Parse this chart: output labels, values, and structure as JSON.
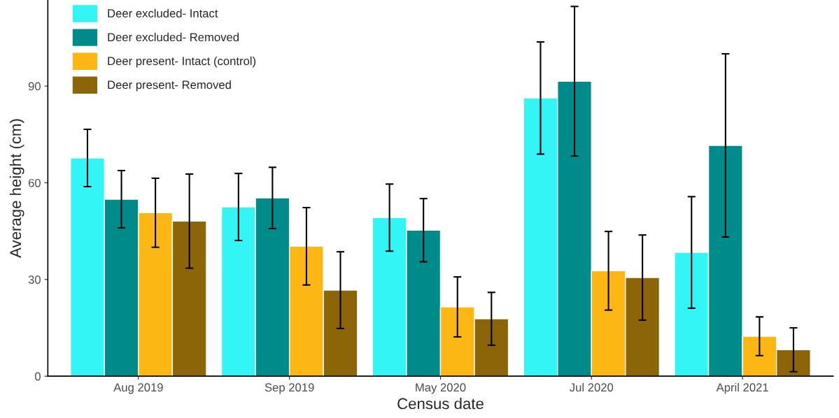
{
  "chart_data": {
    "type": "bar",
    "xlabel": "Census date",
    "ylabel": "Average height (cm)",
    "categories": [
      "Aug 2019",
      "Sep 2019",
      "May 2020",
      "Jul 2020",
      "April 2021"
    ],
    "series": [
      {
        "name": "Deer excluded- Intact",
        "color": "#33f5f5",
        "values": [
          67.7,
          52.5,
          49.2,
          86.3,
          38.4
        ],
        "errors": [
          8.9,
          10.4,
          10.4,
          17.4,
          17.3
        ]
      },
      {
        "name": "Deer excluded- Removed",
        "color": "#008b8b",
        "values": [
          54.9,
          55.3,
          45.3,
          91.5,
          71.6
        ],
        "errors": [
          8.9,
          9.5,
          9.8,
          23.2,
          28.4
        ]
      },
      {
        "name": "Deer present- Intact (control)",
        "color": "#fcb714",
        "values": [
          50.7,
          40.3,
          21.5,
          32.7,
          12.4
        ],
        "errors": [
          10.7,
          12.0,
          9.3,
          12.2,
          6.0
        ]
      },
      {
        "name": "Deer present- Removed",
        "color": "#8b6508",
        "values": [
          48.1,
          26.7,
          17.8,
          30.6,
          8.2
        ],
        "errors": [
          14.6,
          11.9,
          8.2,
          13.2,
          6.8
        ]
      }
    ],
    "ylim": [
      0,
      116.7
    ],
    "yticks": [
      0,
      30,
      60,
      90
    ],
    "grid": false,
    "legend": "top left"
  }
}
